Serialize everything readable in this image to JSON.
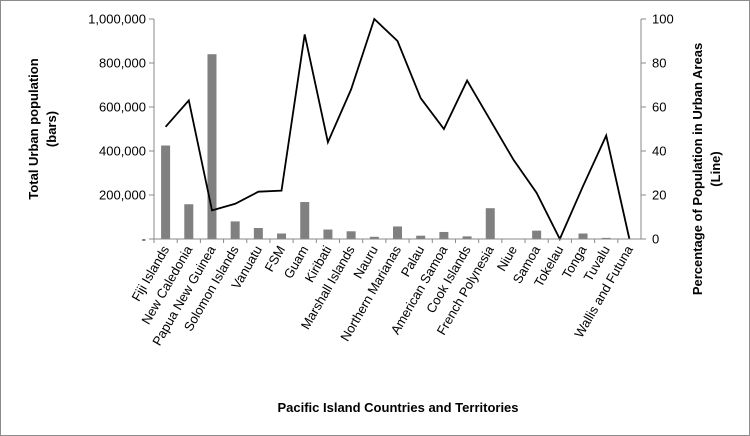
{
  "chart_data": {
    "type": "bar+line",
    "xlabel": "Pacific Island Countries and Territories",
    "ylabel_left": [
      "Total Urban population",
      "(bars)"
    ],
    "ylabel_right": [
      "Percentage of Population in Urban Areas",
      "(Line)"
    ],
    "categories": [
      "Fiji Islands",
      "New Caledonia",
      "Papua New Guinea",
      "Solomon Islands",
      "Vanuatu",
      "FSM",
      "Guam",
      "Kiribati",
      "Marshall Islands",
      "Nauru",
      "Northern Marianas",
      "Palau",
      "American Samoa",
      "Cook Islands",
      "French Polynesia",
      "Niue",
      "Samoa",
      "Tokelau",
      "Tonga",
      "Tuvalu",
      "Wallis and Futuna"
    ],
    "series": [
      {
        "type": "bar",
        "axis": "left",
        "color": "#808080",
        "values": [
          425000,
          158000,
          840000,
          80000,
          50000,
          25000,
          168000,
          43000,
          35000,
          10000,
          57000,
          15000,
          32000,
          12000,
          140000,
          1000,
          38000,
          0,
          25000,
          5000,
          0
        ]
      },
      {
        "type": "line",
        "axis": "right",
        "color": "#000000",
        "values": [
          51,
          63,
          13,
          16,
          21.5,
          22,
          93,
          44,
          68,
          100,
          90,
          64,
          50,
          72,
          54,
          36,
          21,
          0,
          24,
          47,
          0
        ]
      }
    ],
    "ylim_left": [
      0,
      1000000
    ],
    "ylim_right": [
      0,
      100
    ],
    "yticks_left": [
      "-",
      "200,000",
      "400,000",
      "600,000",
      "800,000",
      "1,000,000"
    ],
    "yticks_right": [
      "0",
      "20",
      "40",
      "60",
      "80",
      "100"
    ],
    "grid": false,
    "legend": "none"
  }
}
